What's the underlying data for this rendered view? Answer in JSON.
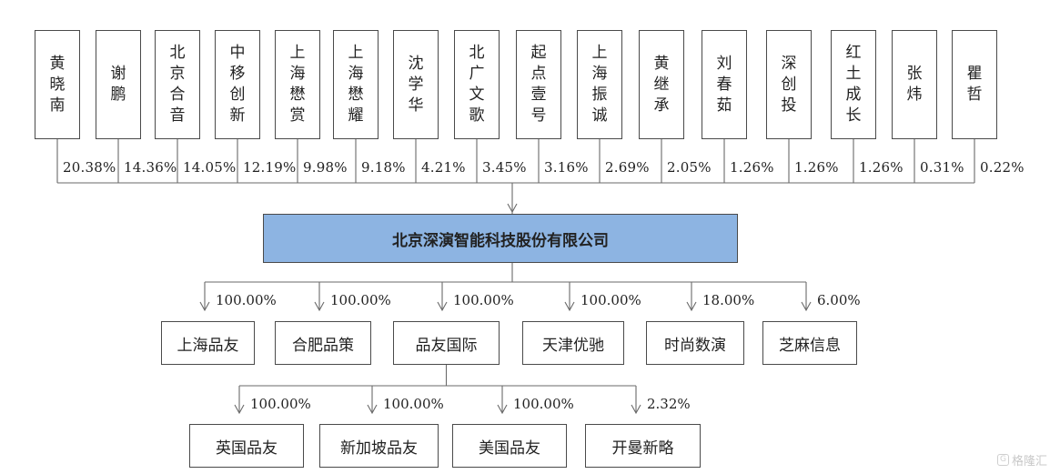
{
  "shareholders": [
    {
      "name": "黄晓南",
      "pct": "20.38%"
    },
    {
      "name": "谢鹏",
      "pct": "14.36%"
    },
    {
      "name": "北京合音",
      "pct": "14.05%"
    },
    {
      "name": "中移创新",
      "pct": "12.19%"
    },
    {
      "name": "上海懋赏",
      "pct": "9.98%"
    },
    {
      "name": "上海懋耀",
      "pct": "9.18%"
    },
    {
      "name": "沈学华",
      "pct": "4.21%"
    },
    {
      "name": "北广文歌",
      "pct": "3.45%"
    },
    {
      "name": "起点壹号",
      "pct": "3.16%"
    },
    {
      "name": "上海振诚",
      "pct": "2.69%"
    },
    {
      "name": "黄继承",
      "pct": "2.05%"
    },
    {
      "name": "刘春茹",
      "pct": "1.26%"
    },
    {
      "name": "深创投",
      "pct": "1.26%"
    },
    {
      "name": "红土成长",
      "pct": "1.26%"
    },
    {
      "name": "张炜",
      "pct": "0.31%"
    },
    {
      "name": "瞿哲",
      "pct": "0.22%"
    }
  ],
  "company": {
    "name": "北京深演智能科技股份有限公司"
  },
  "subsidiaries": [
    {
      "name": "上海品友",
      "pct": "100.00%"
    },
    {
      "name": "合肥品策",
      "pct": "100.00%"
    },
    {
      "name": "品友国际",
      "pct": "100.00%"
    },
    {
      "name": "天津优驰",
      "pct": "100.00%"
    },
    {
      "name": "时尚数演",
      "pct": "18.00%"
    },
    {
      "name": "芝麻信息",
      "pct": "6.00%"
    }
  ],
  "grandchildren": [
    {
      "name": "英国品友",
      "pct": "100.00%"
    },
    {
      "name": "新加坡品友",
      "pct": "100.00%"
    },
    {
      "name": "美国品友",
      "pct": "100.00%"
    },
    {
      "name": "开曼新略",
      "pct": "2.32%"
    }
  ],
  "watermark": {
    "icon": "gelonghui-logo-icon",
    "text": "格隆汇"
  }
}
